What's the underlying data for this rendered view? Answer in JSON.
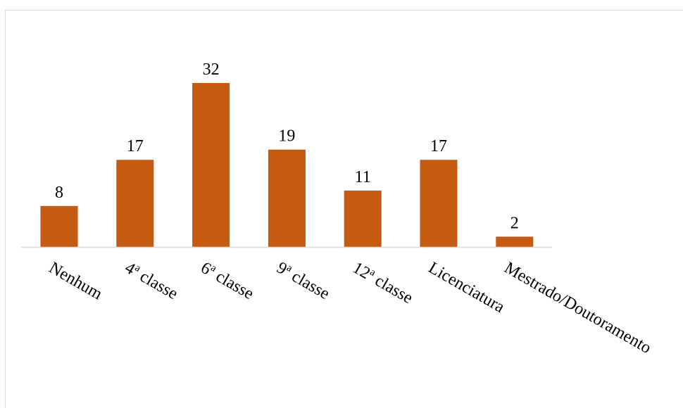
{
  "chart_data": {
    "type": "bar",
    "title": "",
    "xlabel": "",
    "ylabel": "",
    "categories": [
      {
        "base": "Nenhum",
        "sup": "",
        "rest": ""
      },
      {
        "base": "4",
        "sup": "a",
        "rest": " classe"
      },
      {
        "base": "6",
        "sup": "a",
        "rest": " classe"
      },
      {
        "base": "9",
        "sup": "a",
        "rest": " classe"
      },
      {
        "base": "12",
        "sup": "a",
        "rest": " classe"
      },
      {
        "base": "Licenciatura",
        "sup": "",
        "rest": ""
      },
      {
        "base": "Mestrado/Doutoramento",
        "sup": "",
        "rest": ""
      }
    ],
    "values": [
      8,
      17,
      32,
      19,
      11,
      17,
      2
    ],
    "data_labels": [
      "8",
      "17",
      "32",
      "19",
      "11",
      "17",
      "2"
    ],
    "ylim": [
      0,
      32
    ],
    "grid": false,
    "legend": "none",
    "bar_color": "#c55a11",
    "axis_color": "#d9d9d9"
  }
}
